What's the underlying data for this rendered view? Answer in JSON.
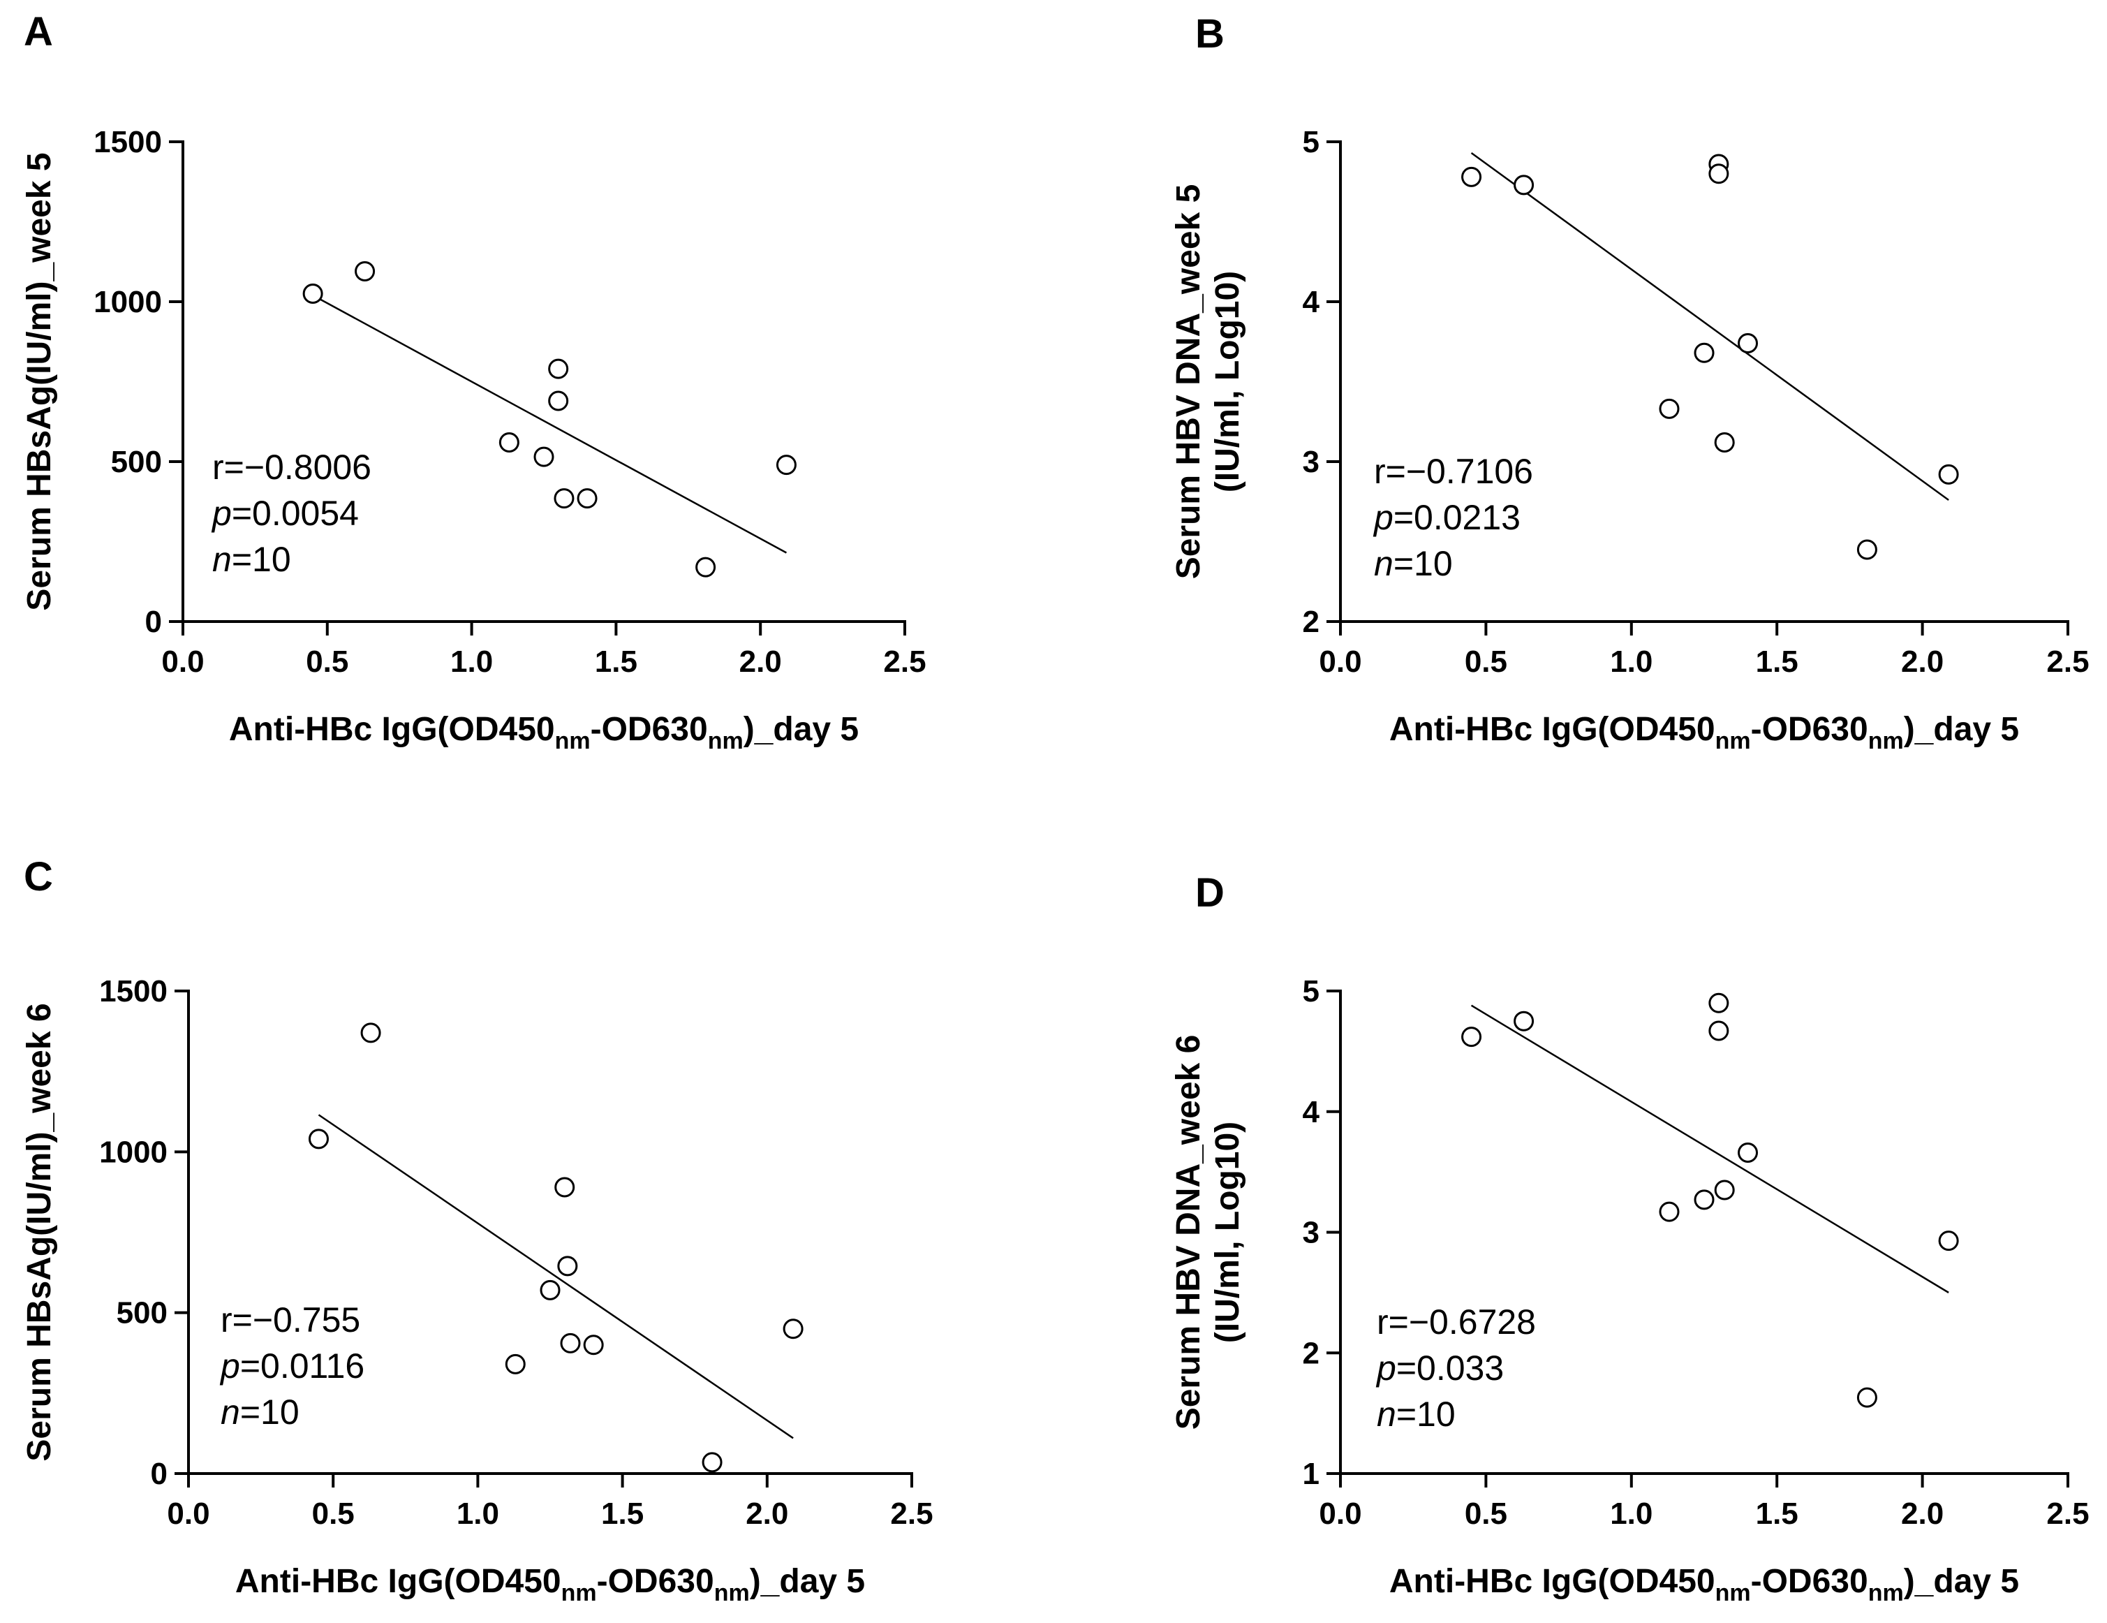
{
  "chart_data": [
    {
      "panel": "A",
      "type": "scatter",
      "ylabel_lines": [
        "Serum HBsAg(IU/ml)_week 5"
      ],
      "xlabel": {
        "pre": "Anti-HBc IgG(OD450",
        "sub1": "nm",
        "mid": "-OD630",
        "sub2": "nm",
        "post": ")_day 5"
      },
      "xlim": [
        0,
        2.5
      ],
      "ylim": [
        0,
        1500
      ],
      "xticks": [
        "0.0",
        "0.5",
        "1.0",
        "1.5",
        "2.0",
        "2.5"
      ],
      "yticks": [
        "0",
        "500",
        "1000",
        "1500"
      ],
      "points": [
        [
          0.45,
          1025
        ],
        [
          0.63,
          1095
        ],
        [
          1.13,
          560
        ],
        [
          1.25,
          515
        ],
        [
          1.3,
          790
        ],
        [
          1.3,
          690
        ],
        [
          1.32,
          385
        ],
        [
          1.4,
          385
        ],
        [
          1.81,
          170
        ],
        [
          2.09,
          490
        ]
      ],
      "fit_line": [
        [
          0.45,
          1020
        ],
        [
          2.09,
          215
        ]
      ],
      "stats": {
        "r_label": "r=",
        "r_value": "−0.8006",
        "p_label": "p",
        "p_value": "=0.0054",
        "n_label": "n",
        "n_value": "=10"
      }
    },
    {
      "panel": "B",
      "type": "scatter",
      "ylabel_lines": [
        "Serum HBV DNA_week 5",
        "(IU/ml, Log10)"
      ],
      "xlabel": {
        "pre": "Anti-HBc IgG(OD450",
        "sub1": "nm",
        "mid": "-OD630",
        "sub2": "nm",
        "post": ")_day 5"
      },
      "xlim": [
        0,
        2.5
      ],
      "ylim": [
        2,
        5
      ],
      "xticks": [
        "0.0",
        "0.5",
        "1.0",
        "1.5",
        "2.0",
        "2.5"
      ],
      "yticks": [
        "2",
        "3",
        "4",
        "5"
      ],
      "points": [
        [
          0.45,
          4.78
        ],
        [
          0.63,
          4.73
        ],
        [
          1.13,
          3.33
        ],
        [
          1.25,
          3.68
        ],
        [
          1.3,
          4.86
        ],
        [
          1.3,
          4.8
        ],
        [
          1.32,
          3.12
        ],
        [
          1.4,
          3.74
        ],
        [
          1.81,
          2.45
        ],
        [
          2.09,
          2.92
        ]
      ],
      "fit_line": [
        [
          0.45,
          4.93
        ],
        [
          2.09,
          2.76
        ]
      ],
      "stats": {
        "r_label": "r=",
        "r_value": "−0.7106",
        "p_label": "p",
        "p_value": "=0.0213",
        "n_label": "n",
        "n_value": "=10"
      }
    },
    {
      "panel": "C",
      "type": "scatter",
      "ylabel_lines": [
        "Serum HBsAg(IU/ml)_week 6"
      ],
      "xlabel": {
        "pre": "Anti-HBc IgG(OD450",
        "sub1": "nm",
        "mid": "-OD630",
        "sub2": "nm",
        "post": ")_day 5"
      },
      "xlim": [
        0,
        2.5
      ],
      "ylim": [
        0,
        1500
      ],
      "xticks": [
        "0.0",
        "0.5",
        "1.0",
        "1.5",
        "2.0",
        "2.5"
      ],
      "yticks": [
        "0",
        "500",
        "1000",
        "1500"
      ],
      "points": [
        [
          0.45,
          1040
        ],
        [
          0.63,
          1370
        ],
        [
          1.13,
          340
        ],
        [
          1.25,
          570
        ],
        [
          1.3,
          890
        ],
        [
          1.31,
          645
        ],
        [
          1.32,
          405
        ],
        [
          1.4,
          400
        ],
        [
          1.81,
          35
        ],
        [
          2.09,
          450
        ]
      ],
      "fit_line": [
        [
          0.45,
          1115
        ],
        [
          2.09,
          110
        ]
      ],
      "stats": {
        "r_label": "r=",
        "r_value": "−0.755",
        "p_label": "p",
        "p_value": "=0.0116",
        "n_label": "n",
        "n_value": "=10"
      }
    },
    {
      "panel": "D",
      "type": "scatter",
      "ylabel_lines": [
        "Serum HBV DNA_week 6",
        "(IU/ml, Log10)"
      ],
      "xlabel": {
        "pre": "Anti-HBc IgG(OD450",
        "sub1": "nm",
        "mid": "-OD630",
        "sub2": "nm",
        "post": ")_day 5"
      },
      "xlim": [
        0,
        2.5
      ],
      "ylim": [
        1,
        5
      ],
      "xticks": [
        "0.0",
        "0.5",
        "1.0",
        "1.5",
        "2.0",
        "2.5"
      ],
      "yticks": [
        "1",
        "2",
        "3",
        "4",
        "5"
      ],
      "points": [
        [
          0.45,
          4.62
        ],
        [
          0.63,
          4.75
        ],
        [
          1.13,
          3.17
        ],
        [
          1.25,
          3.27
        ],
        [
          1.3,
          4.9
        ],
        [
          1.3,
          4.67
        ],
        [
          1.32,
          3.35
        ],
        [
          1.4,
          3.66
        ],
        [
          1.81,
          1.63
        ],
        [
          2.09,
          2.93
        ]
      ],
      "fit_line": [
        [
          0.45,
          4.88
        ],
        [
          2.09,
          2.5
        ]
      ],
      "stats": {
        "r_label": "r=",
        "r_value": "−0.6728",
        "p_label": "p",
        "p_value": "=0.033",
        "n_label": "n",
        "n_value": "=10"
      }
    }
  ]
}
